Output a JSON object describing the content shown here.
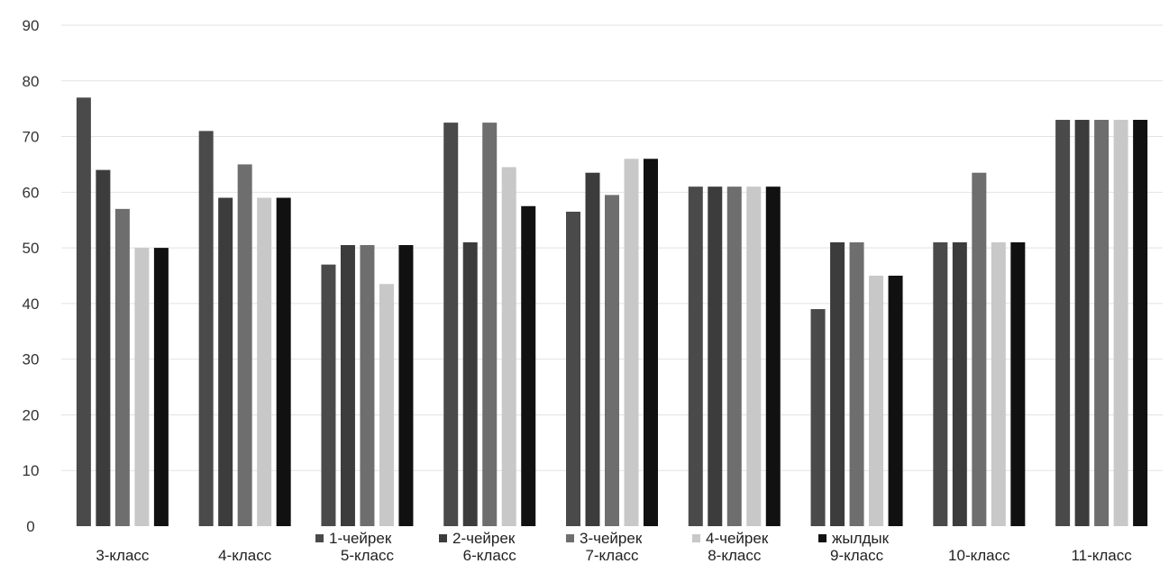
{
  "chart_data": {
    "type": "bar",
    "title": "",
    "xlabel": "",
    "ylabel": "",
    "ylim": [
      0,
      90
    ],
    "yticks": [
      0,
      10,
      20,
      30,
      40,
      50,
      60,
      70,
      80,
      90
    ],
    "grid": true,
    "legend_position": "bottom",
    "categories": [
      "3-класс",
      "4-класс",
      "5-класс",
      "6-класс",
      "7-класс",
      "8-класс",
      "9-класс",
      "10-класс",
      "11-класс"
    ],
    "series": [
      {
        "name": "1-чейрек",
        "color": "#4a4a4a",
        "values": [
          77,
          71,
          47,
          72.5,
          56.5,
          61,
          39,
          51,
          73
        ]
      },
      {
        "name": "2-чейрек",
        "color": "#3c3c3c",
        "values": [
          64,
          59,
          50.5,
          51,
          63.5,
          61,
          51,
          51,
          73
        ]
      },
      {
        "name": "3-чейрек",
        "color": "#6e6e6e",
        "values": [
          57,
          65,
          50.5,
          72.5,
          59.5,
          61,
          51,
          63.5,
          73
        ]
      },
      {
        "name": "4-чейрек",
        "color": "#c8c8c8",
        "values": [
          50,
          59,
          43.5,
          64.5,
          66,
          61,
          45,
          51,
          73
        ]
      },
      {
        "name": "жылдык",
        "color": "#111111",
        "values": [
          50,
          59,
          50.5,
          57.5,
          66,
          61,
          45,
          51,
          73
        ]
      }
    ]
  }
}
